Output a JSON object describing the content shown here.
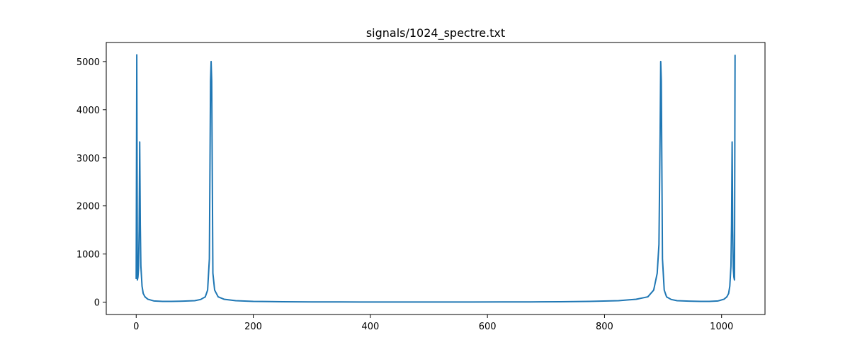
{
  "chart_data": {
    "type": "line",
    "title": "signals/1024_spectre.txt",
    "xlabel": "",
    "ylabel": "",
    "xlim": [
      -51.15,
      1074.15
    ],
    "ylim": [
      -257,
      5396
    ],
    "xticks": [
      0,
      200,
      400,
      600,
      800,
      1000
    ],
    "yticks": [
      0,
      1000,
      2000,
      3000,
      4000,
      5000
    ],
    "xtick_labels": [
      "0",
      "200",
      "400",
      "600",
      "800",
      "1000"
    ],
    "ytick_labels": [
      "0",
      "1000",
      "2000",
      "3000",
      "4000",
      "5000"
    ],
    "grid": false,
    "legend": "none",
    "series": [
      {
        "color": "#1f77b4",
        "x": [
          0,
          1,
          2,
          3,
          4,
          5,
          6,
          7,
          8,
          10,
          12,
          15,
          20,
          30,
          45,
          60,
          80,
          100,
          110,
          118,
          122,
          125,
          127,
          128,
          129,
          131,
          134,
          140,
          150,
          170,
          200,
          250,
          300,
          350,
          400,
          450,
          500,
          512,
          524,
          574,
          624,
          674,
          724,
          774,
          824,
          854,
          874,
          884,
          890,
          893,
          895,
          896,
          897,
          899,
          902,
          906,
          914,
          924,
          944,
          964,
          979,
          994,
          1004,
          1009,
          1012,
          1014,
          1016,
          1017,
          1018,
          1019,
          1020,
          1021,
          1022,
          1023
        ],
        "y": [
          480,
          5140,
          460,
          520,
          700,
          1500,
          3330,
          1600,
          750,
          330,
          180,
          110,
          60,
          25,
          15,
          15,
          20,
          30,
          55,
          110,
          250,
          900,
          4600,
          5000,
          4600,
          600,
          250,
          110,
          60,
          30,
          15,
          8,
          5,
          4,
          3,
          3,
          3,
          3,
          3,
          3,
          4,
          5,
          8,
          15,
          30,
          60,
          110,
          250,
          600,
          1200,
          3500,
          5000,
          4600,
          900,
          250,
          110,
          55,
          30,
          20,
          15,
          15,
          25,
          60,
          110,
          180,
          330,
          750,
          1600,
          3330,
          1500,
          700,
          520,
          460,
          5140
        ]
      }
    ]
  }
}
